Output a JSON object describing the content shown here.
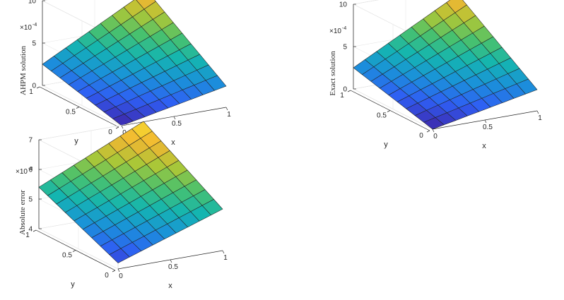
{
  "chart_data": [
    {
      "type": "surface",
      "xlabel": "x",
      "ylabel": "y",
      "zlabel": "AHPM solution",
      "scale_base": "×10",
      "scale_exp": "-4",
      "x_ticks": [
        "0",
        "0.5",
        "1"
      ],
      "y_ticks": [
        "0",
        "0.5",
        "1"
      ],
      "z_ticks": [
        "0",
        "5",
        "10"
      ],
      "xlim": [
        0,
        1
      ],
      "ylim": [
        0,
        1
      ],
      "zlim": [
        0,
        10
      ],
      "grid": true,
      "colormap": "parula",
      "surface_corners": {
        "x0y0": 0,
        "x1y0": 2.5,
        "x0y1": 2.5,
        "x1y1": 9
      },
      "grid_lines": 9
    },
    {
      "type": "surface",
      "xlabel": "x",
      "ylabel": "y",
      "zlabel": "Exact solution",
      "scale_base": "×10",
      "scale_exp": "-4",
      "x_ticks": [
        "0",
        "0.5",
        "1"
      ],
      "y_ticks": [
        "0",
        "0.5",
        "1"
      ],
      "z_ticks": [
        "0",
        "5",
        "10"
      ],
      "xlim": [
        0,
        1
      ],
      "ylim": [
        0,
        1
      ],
      "zlim": [
        0,
        10
      ],
      "grid": true,
      "colormap": "parula",
      "surface_corners": {
        "x0y0": 0,
        "x1y0": 2.5,
        "x0y1": 2.5,
        "x1y1": 9
      },
      "grid_lines": 9
    },
    {
      "type": "surface",
      "xlabel": "x",
      "ylabel": "y",
      "zlabel": "Absolute error",
      "scale_base": "×10",
      "scale_exp": "-8",
      "x_ticks": [
        "0",
        "0.5",
        "1"
      ],
      "y_ticks": [
        "0",
        "0.5",
        "1"
      ],
      "z_ticks": [
        "4",
        "5",
        "6",
        "7"
      ],
      "xlim": [
        0,
        1
      ],
      "ylim": [
        0,
        1
      ],
      "zlim": [
        4,
        7
      ],
      "grid": true,
      "colormap": "parula",
      "surface_corners": {
        "x0y0": 4.2,
        "x1y0": 5.4,
        "x0y1": 5.4,
        "x1y1": 7.0
      },
      "grid_lines": 9
    }
  ],
  "colors": {
    "parula": [
      "#3e26a8",
      "#2f5ef4",
      "#1a92d9",
      "#14b5b0",
      "#48c16e",
      "#abc737",
      "#f1b632",
      "#f6de2f"
    ]
  }
}
